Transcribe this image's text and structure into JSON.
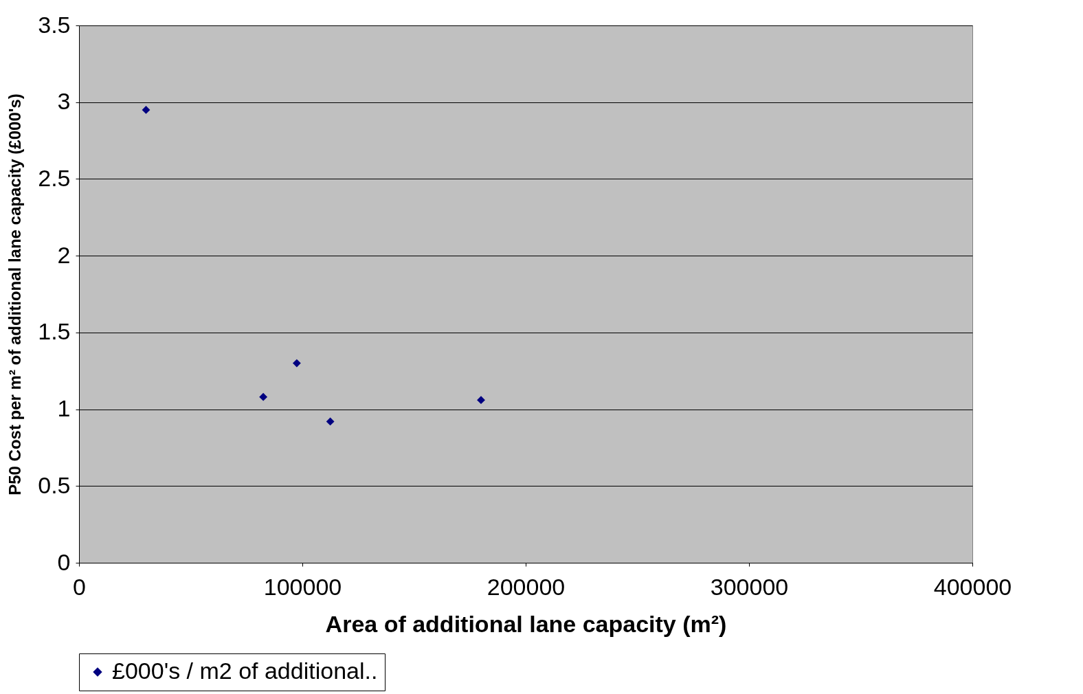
{
  "chart_data": {
    "type": "scatter",
    "xlabel": "Area of additional lane capacity (m²)",
    "ylabel": "P50 Cost per m² of additional lane capacity (£000's)",
    "x": [
      30000,
      82500,
      97500,
      112500,
      180000
    ],
    "series": [
      {
        "name": "£000's / m2 of additional..",
        "color": "#000080",
        "values": [
          2.95,
          1.08,
          1.3,
          0.92,
          1.06
        ]
      }
    ],
    "xlim": [
      0,
      400000
    ],
    "xticks": [
      0,
      100000,
      200000,
      300000,
      400000
    ],
    "ylim": [
      0,
      3.5
    ],
    "yticks": [
      0,
      0.5,
      1,
      1.5,
      2,
      2.5,
      3,
      3.5
    ],
    "grid": "y",
    "legend": "bottom",
    "marker": "diamond"
  }
}
